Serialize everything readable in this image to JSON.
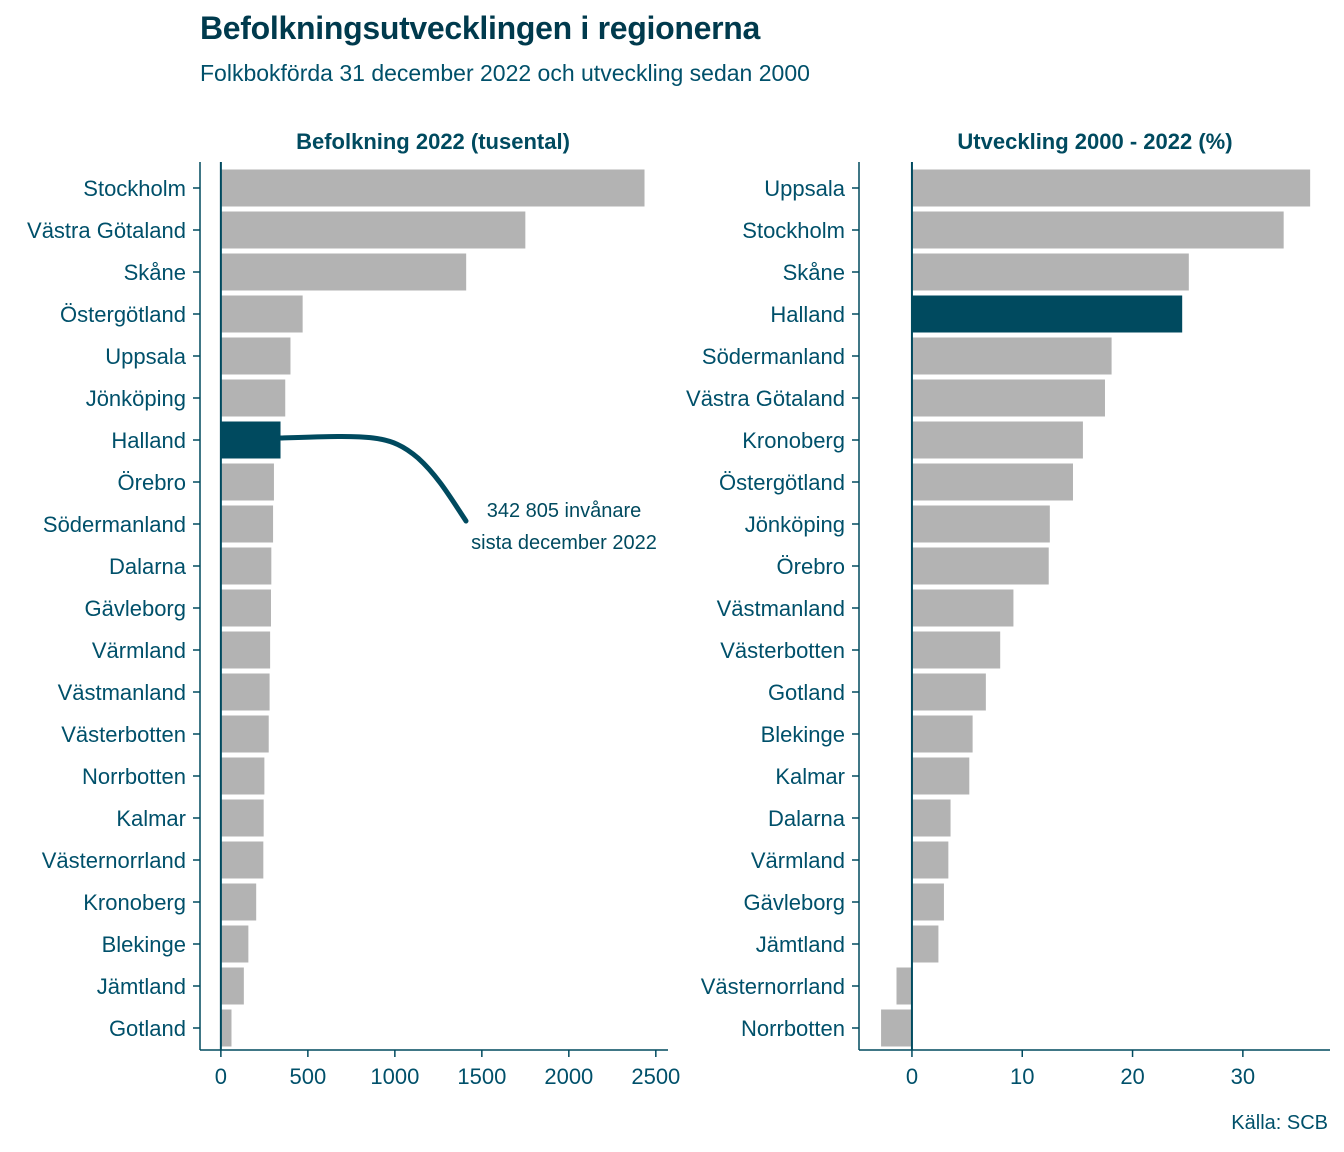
{
  "title": "Befolkningsutvecklingen i regionerna",
  "subtitle": "Folkbokförda 31 december 2022 och utveckling sedan 2000",
  "source": "Källa: SCB",
  "colors": {
    "bar": "#b3b3b3",
    "highlight": "#004a5f",
    "axis": "#004a5f",
    "text": "#00506a"
  },
  "annotation": {
    "line1": "342 805 invånare",
    "line2": "sista december 2022"
  },
  "chart_data": [
    {
      "type": "bar",
      "orientation": "horizontal",
      "title": "Befolkning 2022 (tusental)",
      "categories": [
        "Stockholm",
        "Västra Götaland",
        "Skåne",
        "Östergötland",
        "Uppsala",
        "Jönköping",
        "Halland",
        "Örebro",
        "Södermanland",
        "Dalarna",
        "Gävleborg",
        "Värmland",
        "Västmanland",
        "Västerbotten",
        "Norrbotten",
        "Kalmar",
        "Västernorrland",
        "Kronoberg",
        "Blekinge",
        "Jämtland",
        "Gotland"
      ],
      "values": [
        2435,
        1750,
        1410,
        470,
        400,
        370,
        342.8,
        305,
        300,
        290,
        288,
        283,
        280,
        275,
        250,
        246,
        244,
        203,
        158,
        132,
        61
      ],
      "highlight": "Halland",
      "xlim": [
        -120,
        2570
      ],
      "xticks": [
        0,
        500,
        1000,
        1500,
        2000,
        2500
      ],
      "xtick_labels": [
        "0",
        "500",
        "1000",
        "1500",
        "2000",
        "2500"
      ]
    },
    {
      "type": "bar",
      "orientation": "horizontal",
      "title": "Utveckling 2000 - 2022 (%)",
      "categories": [
        "Uppsala",
        "Stockholm",
        "Skåne",
        "Halland",
        "Södermanland",
        "Västra Götaland",
        "Kronoberg",
        "Östergötland",
        "Jönköping",
        "Örebro",
        "Västmanland",
        "Västerbotten",
        "Gotland",
        "Blekinge",
        "Kalmar",
        "Dalarna",
        "Värmland",
        "Gävleborg",
        "Jämtland",
        "Västernorrland",
        "Norrbotten"
      ],
      "values": [
        36.1,
        33.7,
        25.1,
        24.5,
        18.1,
        17.5,
        15.5,
        14.6,
        12.5,
        12.4,
        9.2,
        8.0,
        6.7,
        5.5,
        5.2,
        3.5,
        3.3,
        2.9,
        2.4,
        -1.4,
        -2.8
      ],
      "highlight": "Halland",
      "xlim": [
        -4.8,
        37.9
      ],
      "xticks": [
        0,
        10,
        20,
        30
      ],
      "xtick_labels": [
        "0",
        "10",
        "20",
        "30"
      ]
    }
  ]
}
